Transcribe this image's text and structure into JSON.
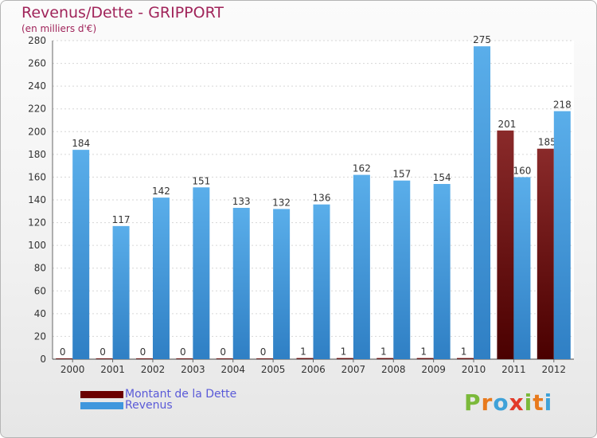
{
  "chart_data": {
    "type": "bar",
    "title": "Revenus/Dette - GRIPPORT",
    "subtitle": "(en milliers d'€)",
    "categories": [
      "2000",
      "2001",
      "2002",
      "2003",
      "2004",
      "2005",
      "2006",
      "2007",
      "2008",
      "2009",
      "2010",
      "2011",
      "2012"
    ],
    "series": [
      {
        "name": "Montant de la Dette",
        "color": "#6b0000",
        "values": [
          0,
          0,
          0,
          0,
          0,
          0,
          1,
          1,
          1,
          1,
          1,
          201,
          185
        ]
      },
      {
        "name": "Revenus",
        "color": "#3f97dd",
        "values": [
          184,
          117,
          142,
          151,
          133,
          132,
          136,
          162,
          157,
          154,
          275,
          160,
          218
        ]
      }
    ],
    "ylim": [
      0,
      280
    ],
    "yticks": [
      0,
      20,
      40,
      60,
      80,
      100,
      120,
      140,
      160,
      180,
      200,
      220,
      240,
      260,
      280
    ],
    "grid": true,
    "xlabel": "",
    "ylabel": ""
  },
  "legend": {
    "debt_label": "Montant de la Dette",
    "revenue_label": "Revenus"
  },
  "logo": {
    "letters": [
      "P",
      "r",
      "o",
      "x",
      "i",
      "t",
      "i"
    ],
    "colors": [
      "#7bb93a",
      "#e87a1d",
      "#3fa2d8",
      "#e23a2a",
      "#7bb93a",
      "#e87a1d",
      "#3fa2d8"
    ]
  }
}
